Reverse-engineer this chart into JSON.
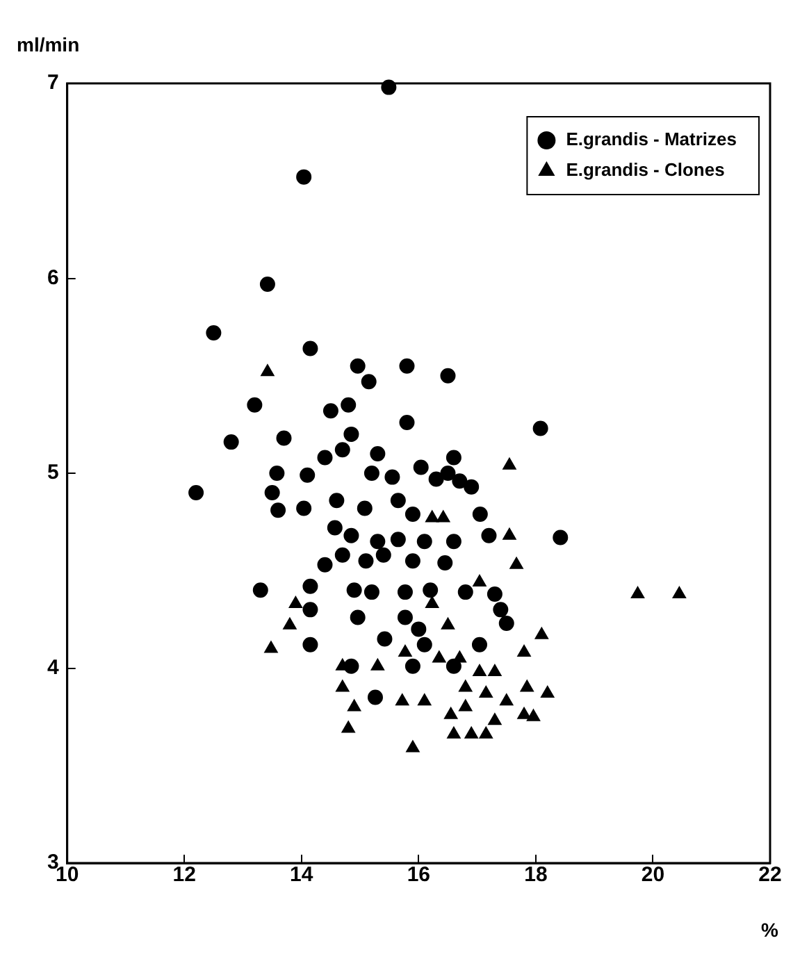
{
  "chart_data": {
    "type": "scatter",
    "xlabel": "%",
    "ylabel": "ml/min",
    "xlim": [
      10,
      22
    ],
    "xticks": [
      10,
      12,
      14,
      16,
      18,
      20,
      22
    ],
    "ylim": [
      3,
      7
    ],
    "yticks": [
      3,
      4,
      5,
      6,
      7
    ],
    "grid": false,
    "legend": "top right",
    "series": [
      {
        "name": "E.grandis - Matrizes",
        "color": "#000000",
        "marker": "circle",
        "x": [
          15.49,
          14.04,
          13.42,
          12.5,
          14.15,
          14.96,
          15.15,
          16.5,
          15.8,
          13.2,
          14.8,
          14.5,
          12.8,
          13.7,
          14.85,
          15.8,
          14.7,
          18.08,
          14.4,
          14.1,
          15.3,
          16.04,
          16.6,
          15.2,
          15.55,
          13.58,
          13.5,
          16.3,
          16.5,
          16.7,
          16.9,
          12.2,
          13.6,
          14.04,
          14.6,
          15.08,
          15.65,
          15.9,
          17.05,
          17.2,
          18.42,
          14.57,
          14.85,
          15.3,
          15.65,
          16.1,
          16.6,
          14.7,
          15.1,
          15.4,
          15.9,
          16.45,
          14.4,
          13.3,
          14.15,
          14.9,
          15.2,
          15.77,
          16.2,
          16.8,
          17.3,
          14.15,
          14.96,
          15.77,
          16.0,
          16.1,
          17.4,
          17.5,
          14.15,
          15.42,
          14.85,
          15.9,
          16.6,
          15.26,
          17.04
        ],
        "values": [
          6.98,
          6.52,
          5.97,
          5.72,
          5.64,
          5.55,
          5.47,
          5.5,
          5.55,
          5.35,
          5.35,
          5.32,
          5.16,
          5.18,
          5.2,
          5.26,
          5.12,
          5.23,
          5.08,
          4.99,
          5.1,
          5.03,
          5.08,
          5.0,
          4.98,
          5.0,
          4.9,
          4.97,
          5.0,
          4.96,
          4.93,
          4.9,
          4.81,
          4.82,
          4.86,
          4.82,
          4.86,
          4.79,
          4.79,
          4.68,
          4.67,
          4.72,
          4.68,
          4.65,
          4.66,
          4.65,
          4.65,
          4.58,
          4.55,
          4.58,
          4.55,
          4.54,
          4.53,
          4.4,
          4.42,
          4.4,
          4.39,
          4.39,
          4.4,
          4.39,
          4.38,
          4.3,
          4.26,
          4.26,
          4.2,
          4.12,
          4.3,
          4.23,
          4.12,
          4.15,
          4.01,
          4.01,
          4.01,
          3.85,
          4.12
        ]
      },
      {
        "name": "E.grandis - Clones",
        "color": "#000000",
        "marker": "triangle",
        "x": [
          13.42,
          17.55,
          16.23,
          16.42,
          17.55,
          17.67,
          17.04,
          19.74,
          20.45,
          13.48,
          13.8,
          13.9,
          14.7,
          14.7,
          14.9,
          14.8,
          15.3,
          15.72,
          15.9,
          16.5,
          16.7,
          16.8,
          17.15,
          17.3,
          17.8,
          17.85,
          18.1,
          18.2,
          17.96,
          17.8,
          16.9,
          16.6,
          17.15,
          16.35,
          16.1,
          16.55,
          16.8,
          16.23,
          17.3,
          17.5,
          15.77,
          17.04
        ],
        "values": [
          5.52,
          5.04,
          4.77,
          4.77,
          4.68,
          4.53,
          4.44,
          4.38,
          4.38,
          4.1,
          4.22,
          4.33,
          4.01,
          3.9,
          3.8,
          3.69,
          4.01,
          3.83,
          3.59,
          4.22,
          4.05,
          3.9,
          3.87,
          3.73,
          4.08,
          3.9,
          4.17,
          3.87,
          3.75,
          3.76,
          3.66,
          3.66,
          3.66,
          4.05,
          3.83,
          3.76,
          3.8,
          4.33,
          3.98,
          3.83,
          4.08,
          3.98
        ]
      }
    ]
  }
}
